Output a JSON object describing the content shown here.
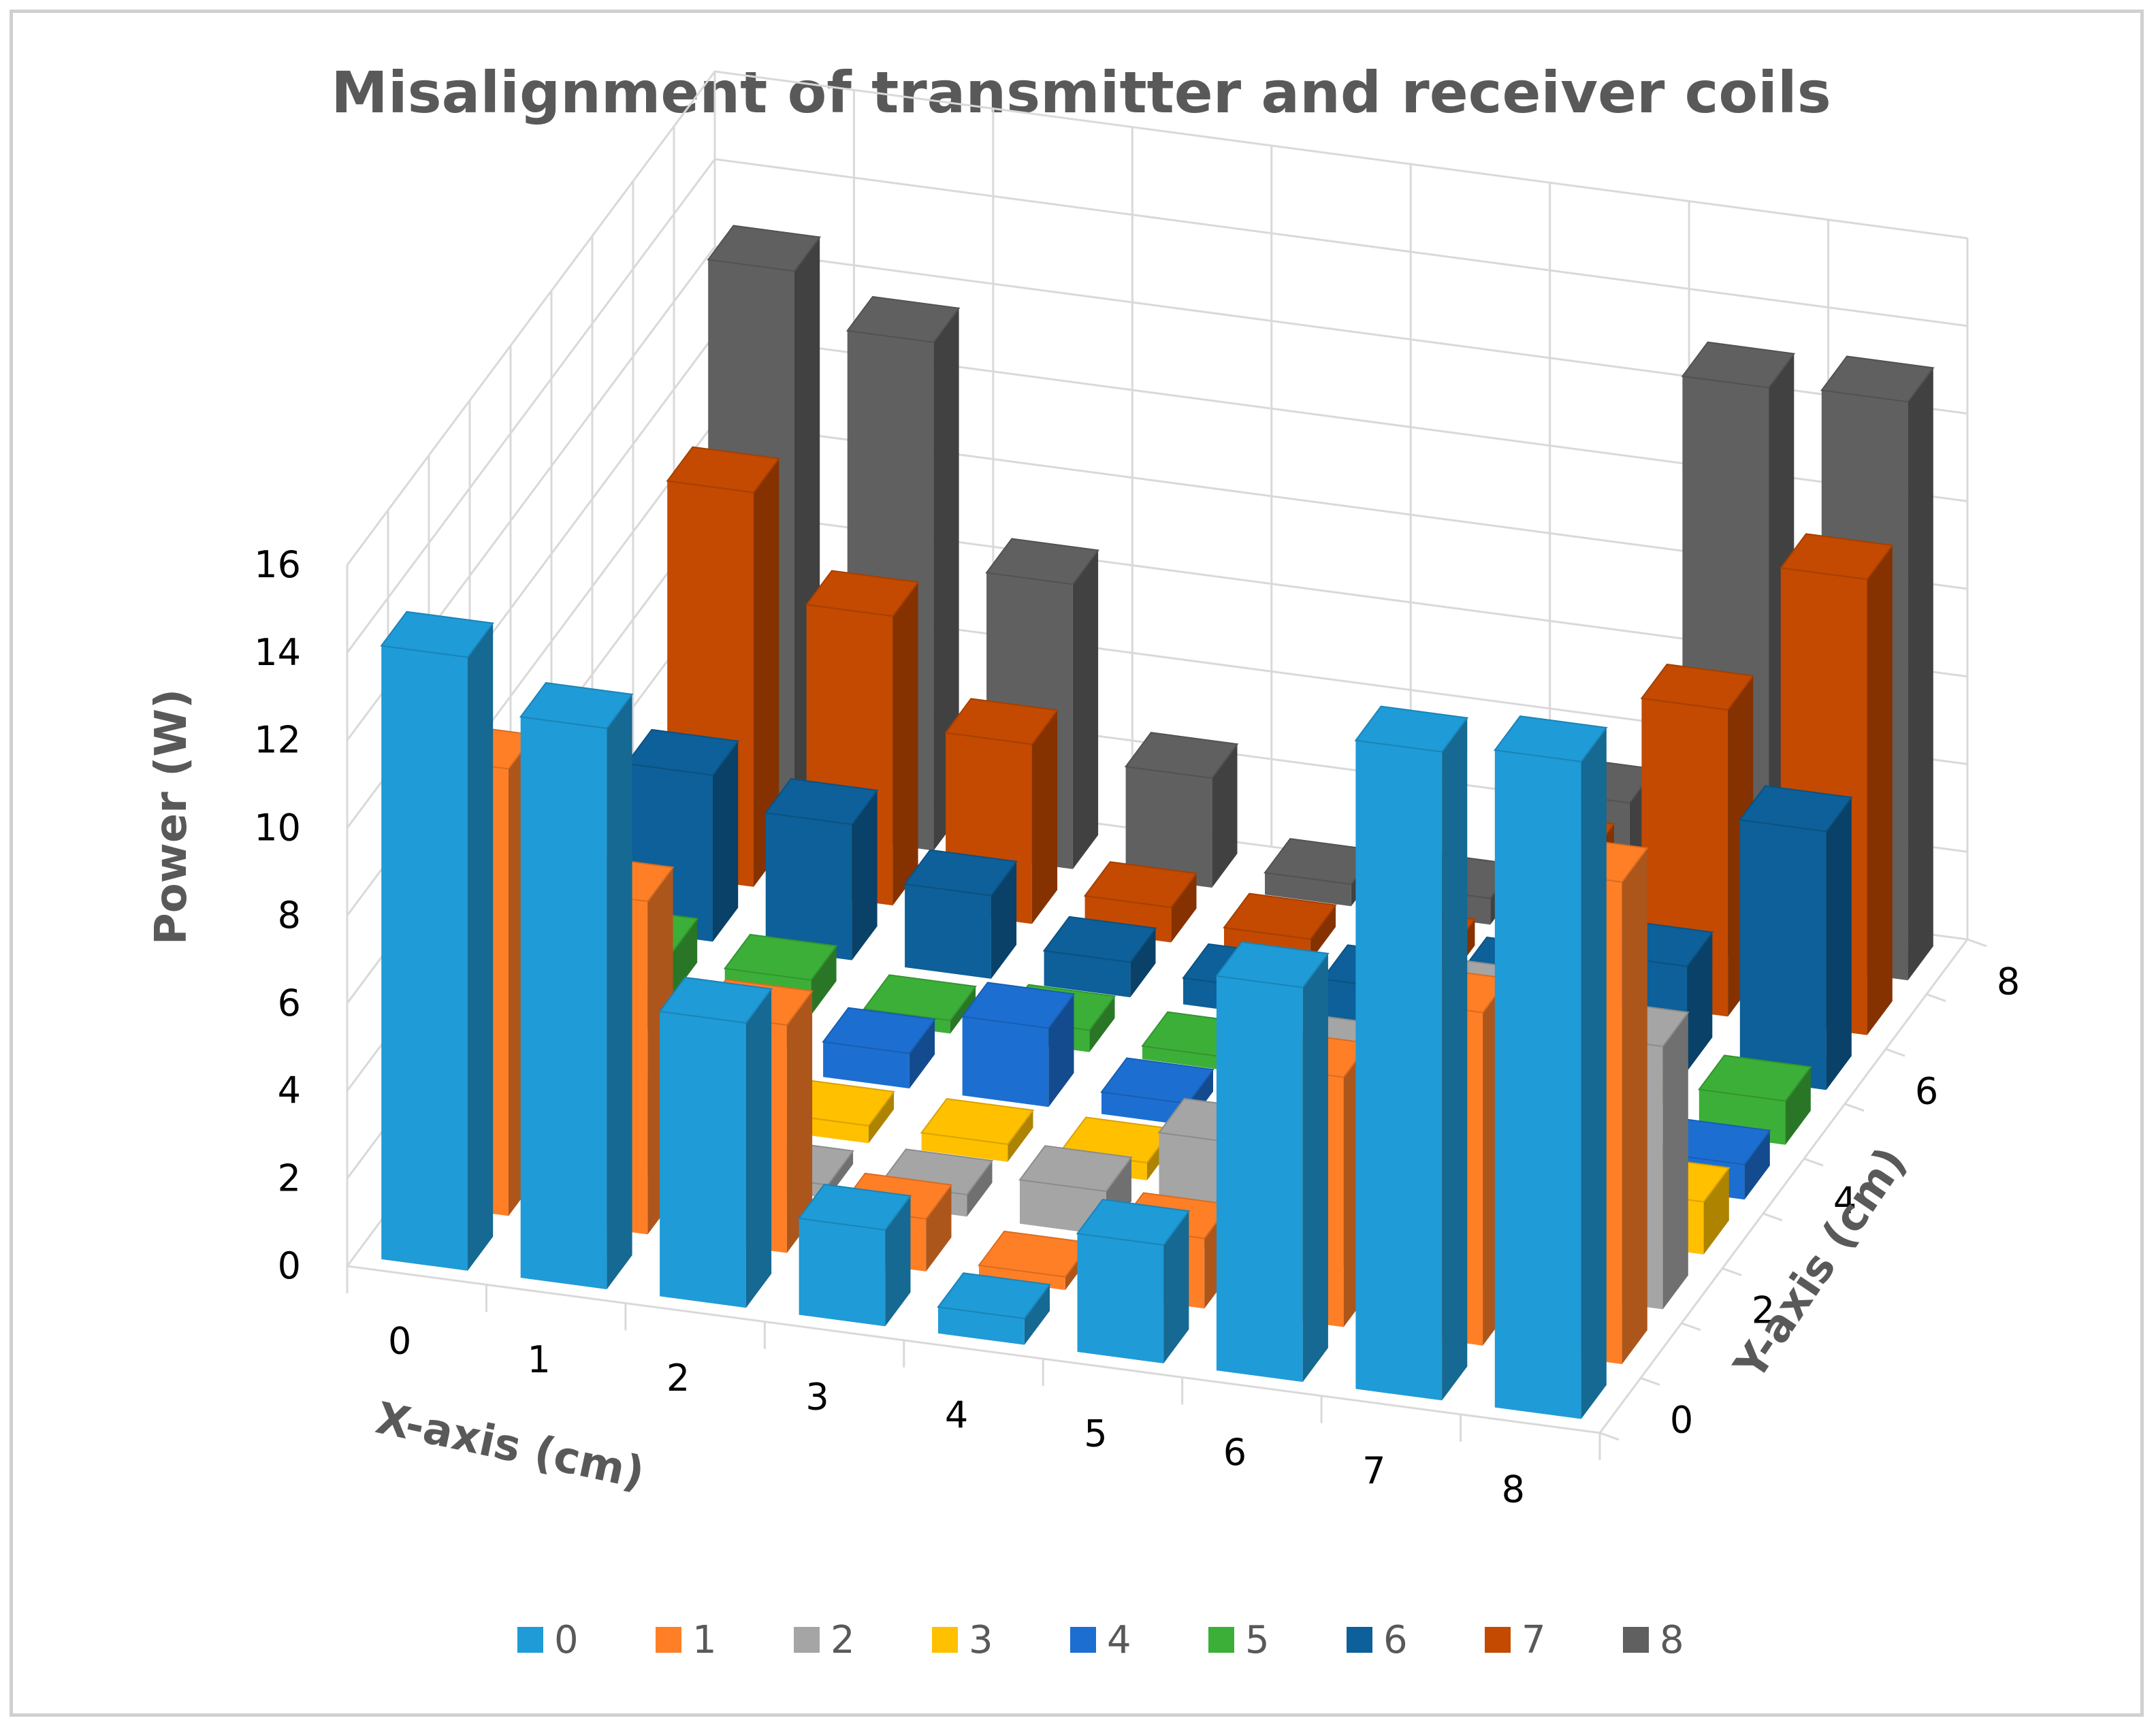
{
  "chart_data": {
    "type": "bar",
    "subtype": "3d-column",
    "title": "Misalignment of transmitter and receiver coils",
    "xlabel": "X-axis (cm)",
    "ylabel": "Y-axis (cm)",
    "zlabel": "Power (W)",
    "zlim": [
      0,
      16
    ],
    "z_ticks": [
      "0",
      "2",
      "4",
      "6",
      "8",
      "10",
      "12",
      "14",
      "16"
    ],
    "x_ticks": [
      "0",
      "1",
      "2",
      "3",
      "4",
      "5",
      "6",
      "7",
      "8"
    ],
    "y_ticks": [
      "0",
      "2",
      "4",
      "6",
      "8"
    ],
    "categories": [
      "0",
      "1",
      "2",
      "3",
      "4",
      "5",
      "6",
      "7",
      "8"
    ],
    "series": [
      {
        "name": "0",
        "color": "#1F9BD7",
        "values": [
          14.0,
          12.8,
          6.5,
          2.2,
          0.6,
          2.7,
          9.0,
          14.8,
          15.0
        ]
      },
      {
        "name": "1",
        "color": "#FF7F27",
        "values": [
          10.2,
          7.6,
          5.2,
          1.2,
          0.3,
          1.6,
          5.7,
          7.6,
          11.0
        ]
      },
      {
        "name": "2",
        "color": "#A5A5A5",
        "values": [
          3.0,
          1.3,
          0.3,
          0.5,
          1.0,
          2.5,
          4.8,
          6.5,
          6.0
        ]
      },
      {
        "name": "3",
        "color": "#FFC000",
        "values": [
          1.0,
          0.4,
          0.4,
          0.4,
          0.4,
          0.4,
          0.4,
          0.4,
          1.2
        ]
      },
      {
        "name": "4",
        "color": "#1C6FD1",
        "values": [
          0.7,
          0.8,
          0.8,
          1.8,
          0.5,
          0.9,
          1.3,
          1.6,
          0.8
        ]
      },
      {
        "name": "5",
        "color": "#3CAF38",
        "values": [
          1.0,
          0.8,
          0.3,
          0.5,
          0.3,
          0.3,
          0.4,
          0.5,
          1.0
        ]
      },
      {
        "name": "6",
        "color": "#0D6099",
        "values": [
          3.8,
          3.1,
          1.9,
          0.8,
          0.6,
          1.0,
          1.6,
          2.4,
          5.9
        ]
      },
      {
        "name": "7",
        "color": "#C34A00",
        "values": [
          9.0,
          6.6,
          4.1,
          0.8,
          0.5,
          0.6,
          3.2,
          7.0,
          10.4
        ]
      },
      {
        "name": "8",
        "color": "#606060",
        "values": [
          12.8,
          11.6,
          6.5,
          2.5,
          0.5,
          0.6,
          3.2,
          13.1,
          13.2
        ]
      }
    ],
    "legend": {
      "position": "bottom"
    },
    "gridlines": true
  }
}
